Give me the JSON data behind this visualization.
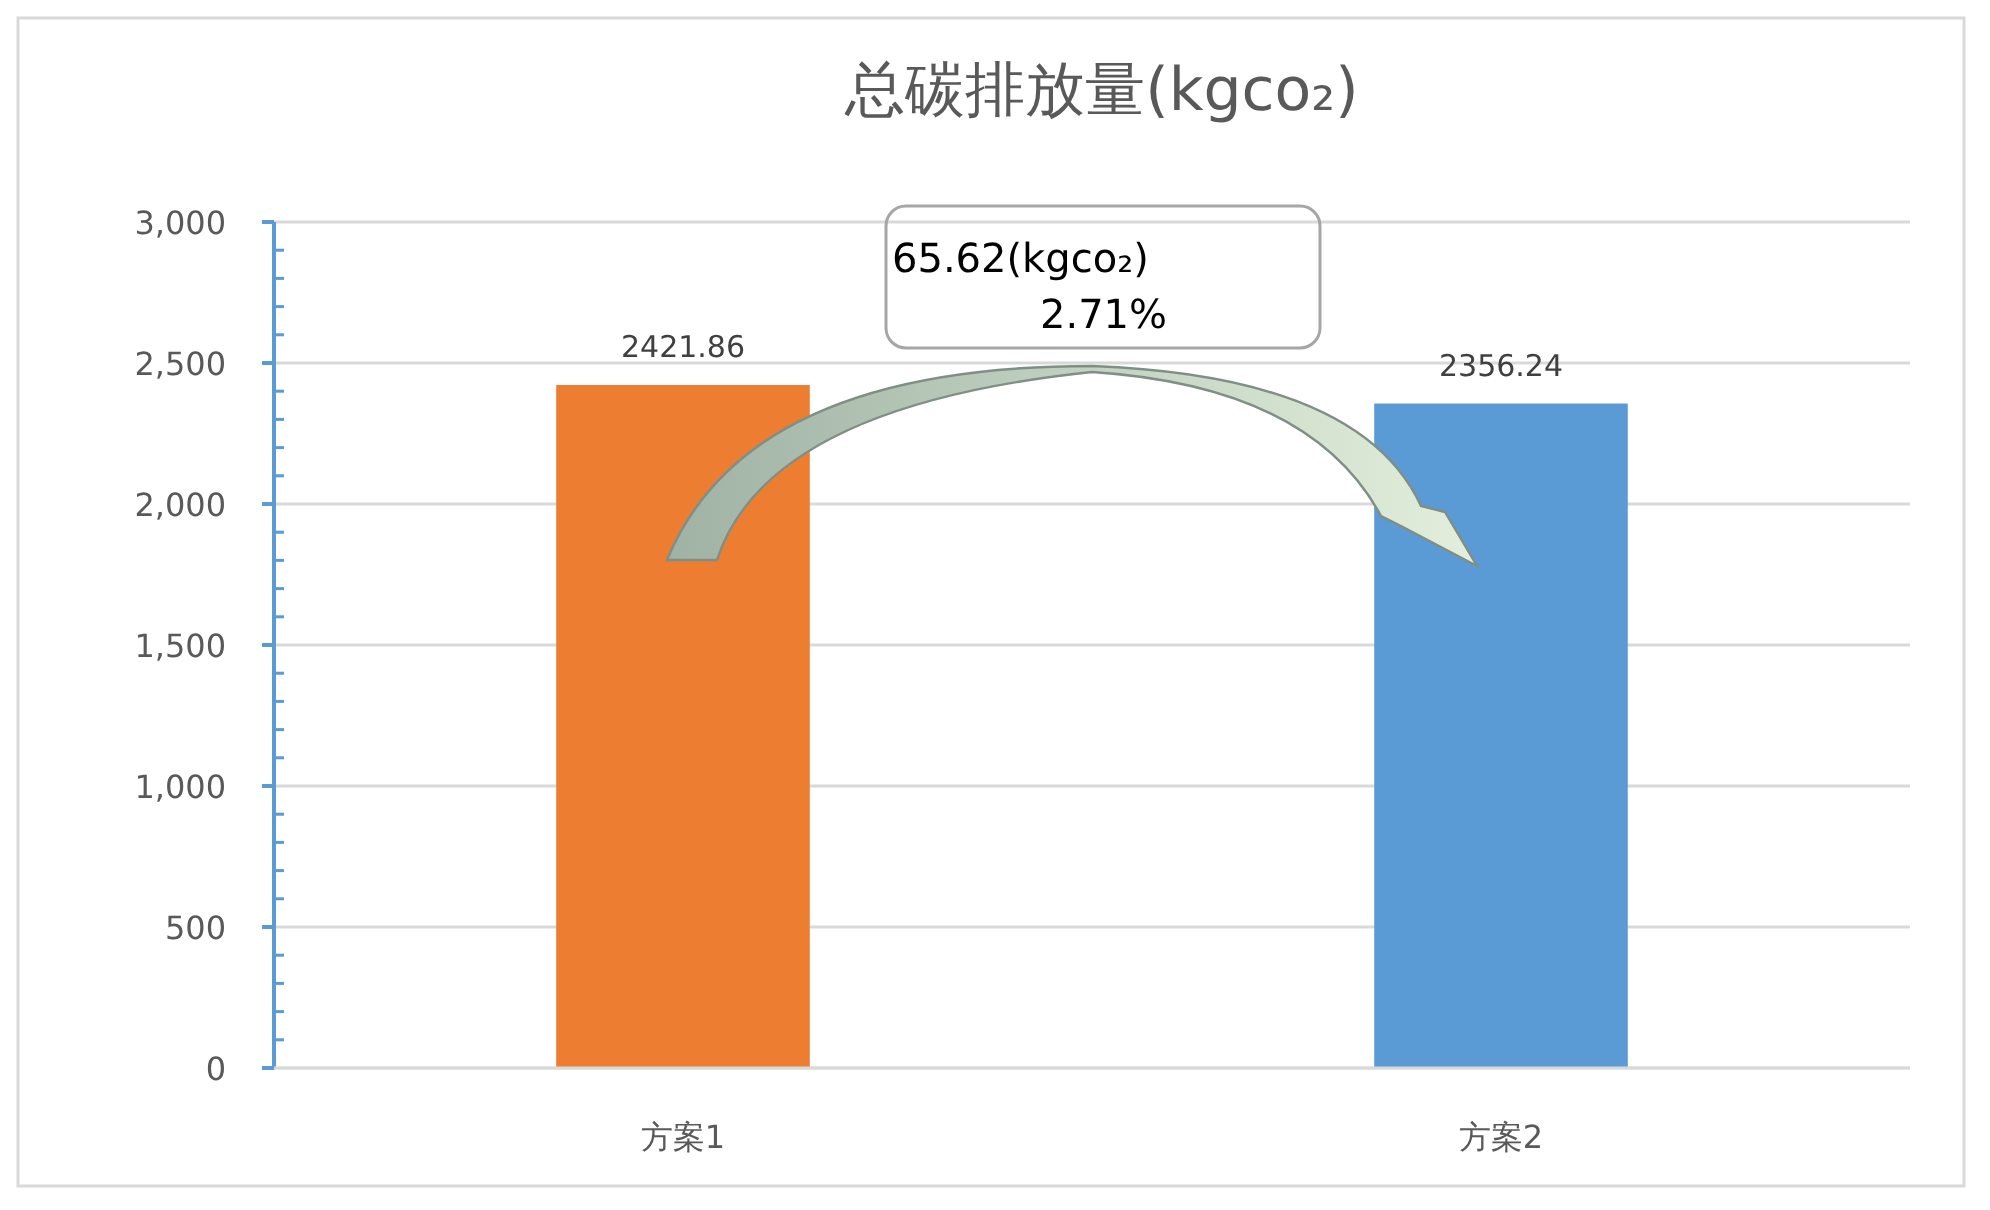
{
  "chart_data": {
    "type": "bar",
    "title": "总碳排放量(kgco₂)",
    "categories": [
      "方案1",
      "方案2"
    ],
    "values": [
      2421.86,
      2356.24
    ],
    "colors": [
      "#ed7d31",
      "#5b9bd5"
    ],
    "ylim": [
      0,
      3000
    ],
    "yticks": [
      0,
      500,
      {
        "value": 1000,
        "label": "1,000"
      },
      {
        "value": 1500,
        "label": "1,500"
      },
      {
        "value": 2000,
        "label": "2,000"
      },
      {
        "value": 2500,
        "label": "2,500"
      },
      {
        "value": 3000,
        "label": "3,000"
      }
    ],
    "grid": "y",
    "data_labels": true,
    "annotations": [
      "65.62(kgco₂)",
      "2.71%"
    ]
  }
}
